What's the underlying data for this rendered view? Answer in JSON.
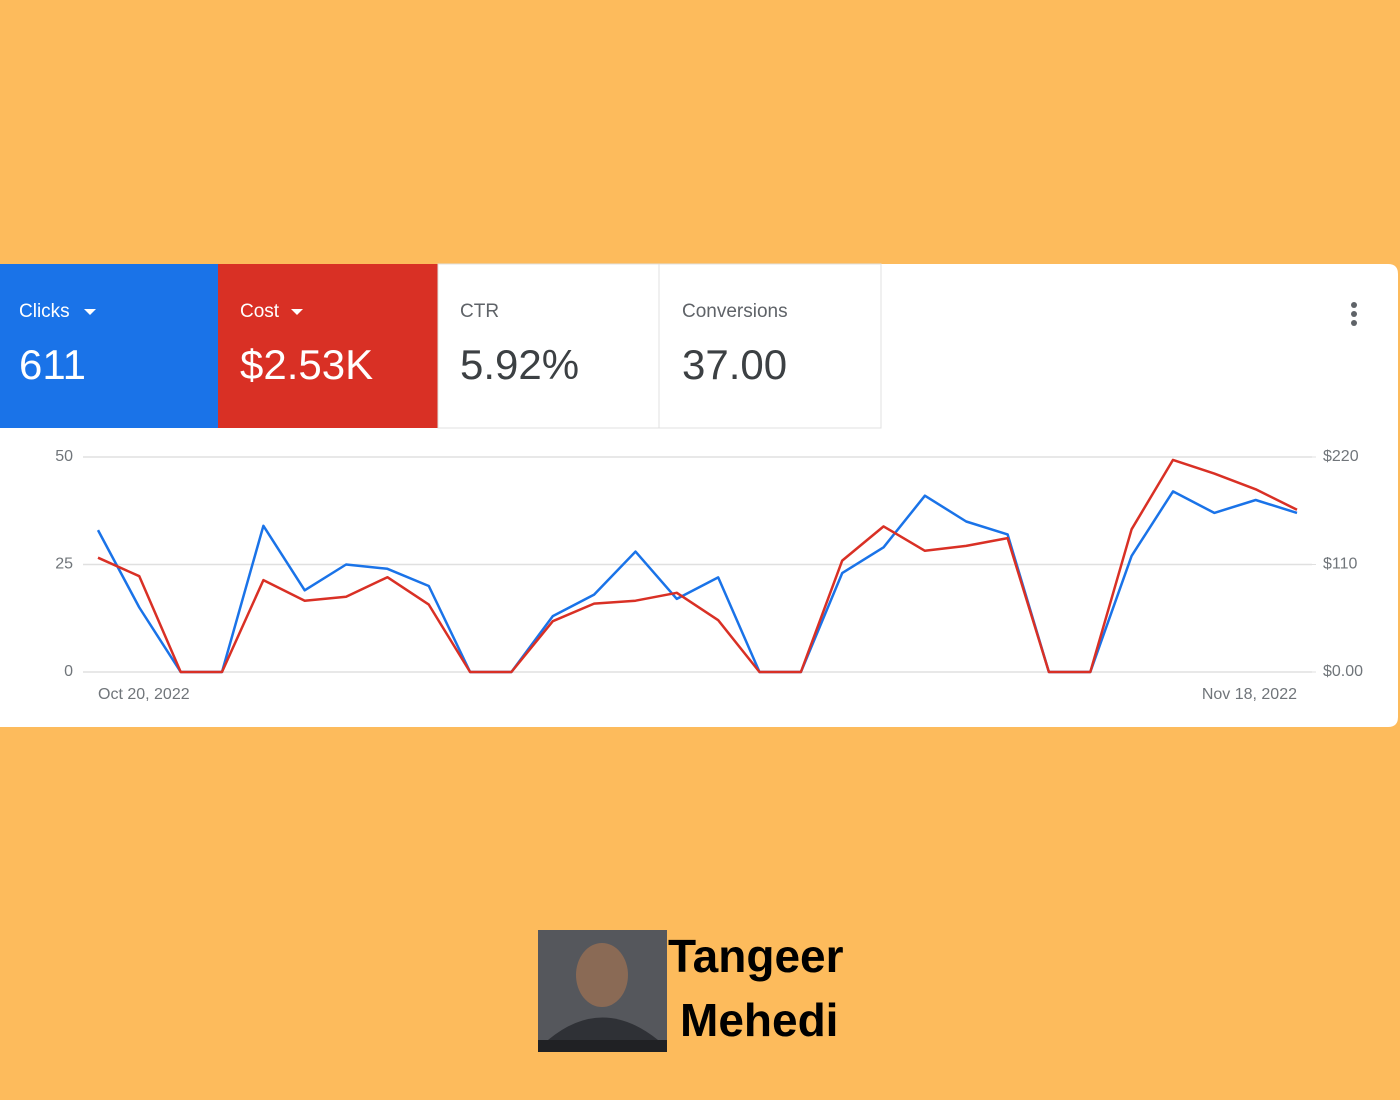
{
  "scorecards": [
    {
      "label": "Clicks",
      "value": "611"
    },
    {
      "label": "Cost",
      "value": "$2.53K"
    },
    {
      "label": "CTR",
      "value": "5.92%"
    },
    {
      "label": "Conversions",
      "value": "37.00"
    }
  ],
  "chart_data": {
    "type": "line",
    "categories": [
      "Oct 20, 2022",
      null,
      null,
      null,
      null,
      null,
      null,
      null,
      null,
      null,
      null,
      null,
      null,
      null,
      null,
      null,
      null,
      null,
      null,
      null,
      null,
      null,
      null,
      null,
      null,
      null,
      null,
      null,
      null,
      "Nov 18, 2022"
    ],
    "series": [
      {
        "color": "#1a73e8",
        "values": [
          33,
          15,
          0,
          0,
          34,
          19,
          25,
          24,
          20,
          0,
          0,
          13,
          18,
          28,
          17,
          22,
          0,
          0,
          23,
          29,
          41,
          35,
          32,
          0,
          0,
          27,
          42,
          37,
          40,
          37
        ]
      },
      {
        "color": "#d93025",
        "axis": "y2",
        "values": [
          117,
          98,
          0,
          0,
          94,
          73,
          77,
          97,
          69,
          0,
          0,
          52,
          70,
          73,
          81,
          53,
          0,
          0,
          114,
          149,
          124,
          129,
          137,
          0,
          0,
          146,
          217,
          203,
          187,
          166
        ]
      }
    ],
    "ylim": [
      0,
      50
    ],
    "yticks": [
      0,
      25,
      50
    ],
    "y2lim": [
      0,
      220
    ],
    "y2ticks": [
      {
        "value": 0,
        "label": "$0.00"
      },
      {
        "value": 110,
        "label": "$110"
      },
      {
        "value": 220,
        "label": "$220"
      }
    ],
    "grid": true
  },
  "footer": {
    "name_lines": [
      "Tangeer",
      "Mehedi"
    ]
  }
}
